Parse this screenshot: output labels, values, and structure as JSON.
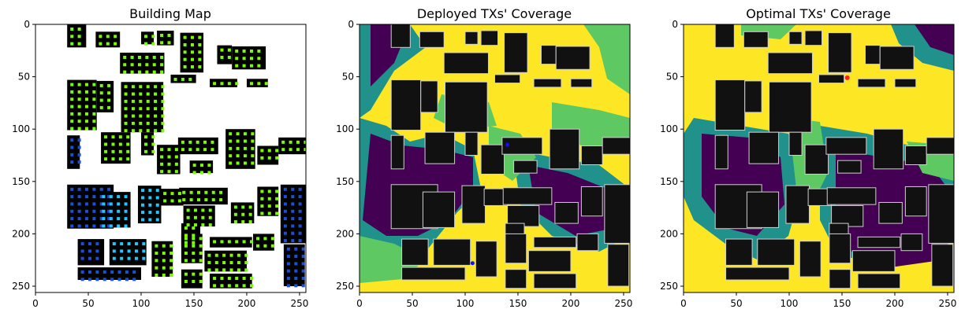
{
  "chart_data": [
    {
      "type": "heatmap",
      "title": "Building Map",
      "xticks": [
        "0",
        "50",
        "100",
        "150",
        "200",
        "250"
      ],
      "yticks": [
        "0",
        "50",
        "100",
        "150",
        "200",
        "250"
      ],
      "xlim": [
        0,
        256
      ],
      "ylim": [
        256,
        0
      ],
      "grid": false,
      "colors": {
        "building": "#000000",
        "background": "#ffffff",
        "marker_green": "#7cfc00",
        "marker_cyan": "#1ec8ff",
        "marker_blue": "#1a4fd8"
      }
    },
    {
      "type": "heatmap",
      "title": "Deployed TXs' Coverage",
      "xticks": [
        "0",
        "50",
        "100",
        "150",
        "200",
        "250"
      ],
      "yticks": [
        "0",
        "50",
        "100",
        "150",
        "200",
        "250"
      ],
      "xlim": [
        0,
        256
      ],
      "ylim": [
        256,
        0
      ],
      "grid": false,
      "transmitters": [
        {
          "x": 140,
          "y": 115
        },
        {
          "x": 107,
          "y": 228
        }
      ],
      "colors": {
        "low": "#440154",
        "mid_low": "#21918c",
        "mid_high": "#5ec962",
        "high": "#fde725",
        "building": "#111111",
        "tx": "#1010ff"
      }
    },
    {
      "type": "heatmap",
      "title": "Optimal TXs' Coverage",
      "xticks": [
        "0",
        "50",
        "100",
        "150",
        "200",
        "250"
      ],
      "yticks": [
        "0",
        "50",
        "100",
        "150",
        "200",
        "250"
      ],
      "xlim": [
        0,
        256
      ],
      "ylim": [
        256,
        0
      ],
      "grid": false,
      "transmitters": [
        {
          "x": 155,
          "y": 51
        }
      ],
      "colors": {
        "low": "#440154",
        "mid_low": "#21918c",
        "mid_high": "#5ec962",
        "high": "#fde725",
        "building": "#111111",
        "tx": "#ff2020"
      }
    }
  ]
}
